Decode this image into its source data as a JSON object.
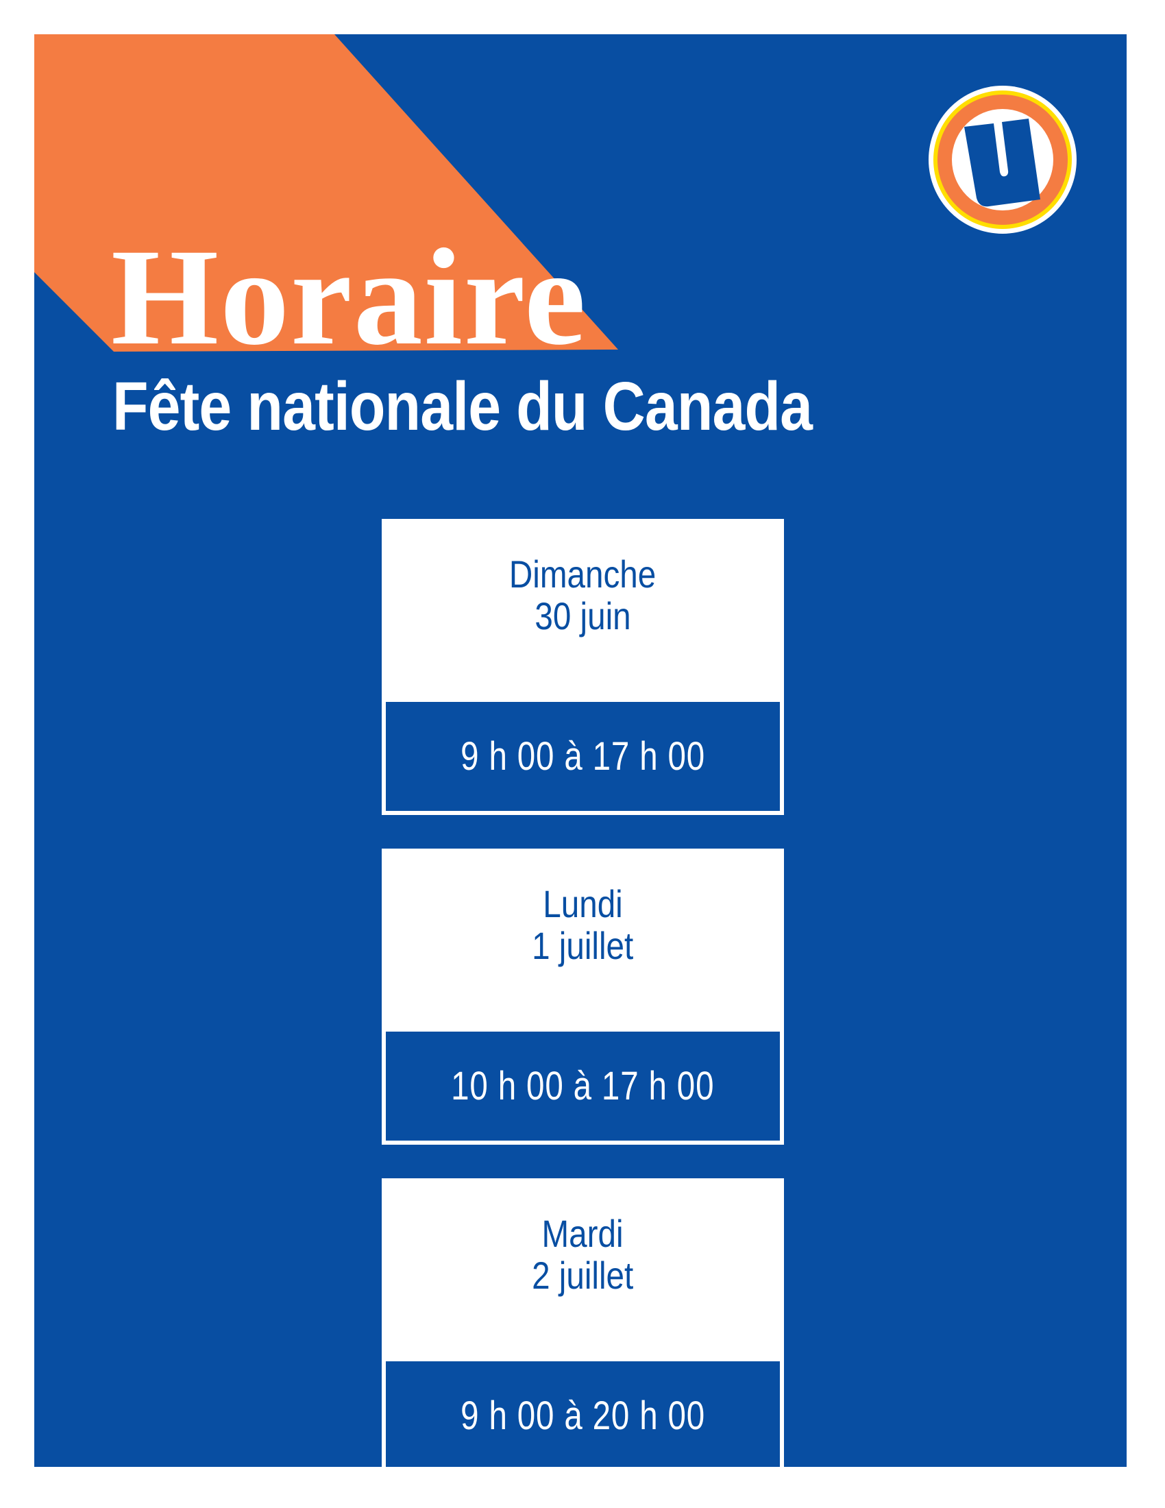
{
  "header": {
    "title": "Horaire",
    "subtitle": "Fête nationale du Canada"
  },
  "logo": {
    "name": "u-logo-icon",
    "letter": "U"
  },
  "colors": {
    "background": "#084ea2",
    "accent": "#f47c42",
    "ring": "#ffde00",
    "text_on_card": "#084ea2"
  },
  "schedule": [
    {
      "day": "Dimanche",
      "date": "30 juin",
      "hours": "9 h 00 à 17 h 00"
    },
    {
      "day": "Lundi",
      "date": "1 juillet",
      "hours": "10 h 00 à 17 h 00"
    },
    {
      "day": "Mardi",
      "date": "2 juillet",
      "hours": "9 h 00 à 20 h 00"
    }
  ]
}
